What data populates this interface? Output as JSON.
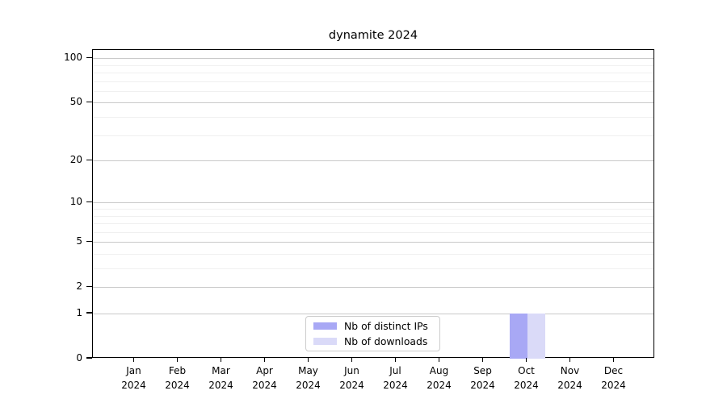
{
  "title": "dynamite 2024",
  "chart_data": {
    "type": "bar",
    "title": "dynamite 2024",
    "categories": [
      "Jan 2024",
      "Feb 2024",
      "Mar 2024",
      "Apr 2024",
      "May 2024",
      "Jun 2024",
      "Jul 2024",
      "Aug 2024",
      "Sep 2024",
      "Oct 2024",
      "Nov 2024",
      "Dec 2024"
    ],
    "series": [
      {
        "name": "Nb of distinct IPs",
        "color": "#a8a8f5",
        "values": [
          0,
          0,
          0,
          0,
          0,
          0,
          0,
          0,
          0,
          1,
          0,
          0
        ]
      },
      {
        "name": "Nb of downloads",
        "color": "#dadaf8",
        "values": [
          0,
          0,
          0,
          0,
          0,
          0,
          0,
          0,
          0,
          1,
          0,
          0
        ]
      }
    ],
    "xlabel": "",
    "ylabel": "",
    "yscale": "log1p",
    "ylim": [
      0,
      113
    ],
    "y_major_ticks": [
      0,
      1,
      2,
      5,
      10,
      20,
      50,
      100
    ],
    "y_minor_gridlines": [
      3,
      4,
      6,
      7,
      8,
      9,
      30,
      40,
      60,
      70,
      80,
      90
    ],
    "grid": true,
    "legend_position": "lower center"
  },
  "legend": {
    "items": [
      {
        "label": "Nb of distinct IPs",
        "color": "#a8a8f5"
      },
      {
        "label": "Nb of downloads",
        "color": "#dadaf8"
      }
    ]
  },
  "colors": {
    "bar_distinct_ips": "#a8a8f5",
    "bar_downloads": "#dadaf8",
    "grid_major": "#c9c9c9",
    "grid_minor": "#f0f0f0",
    "axis": "#000000",
    "background": "#ffffff"
  }
}
